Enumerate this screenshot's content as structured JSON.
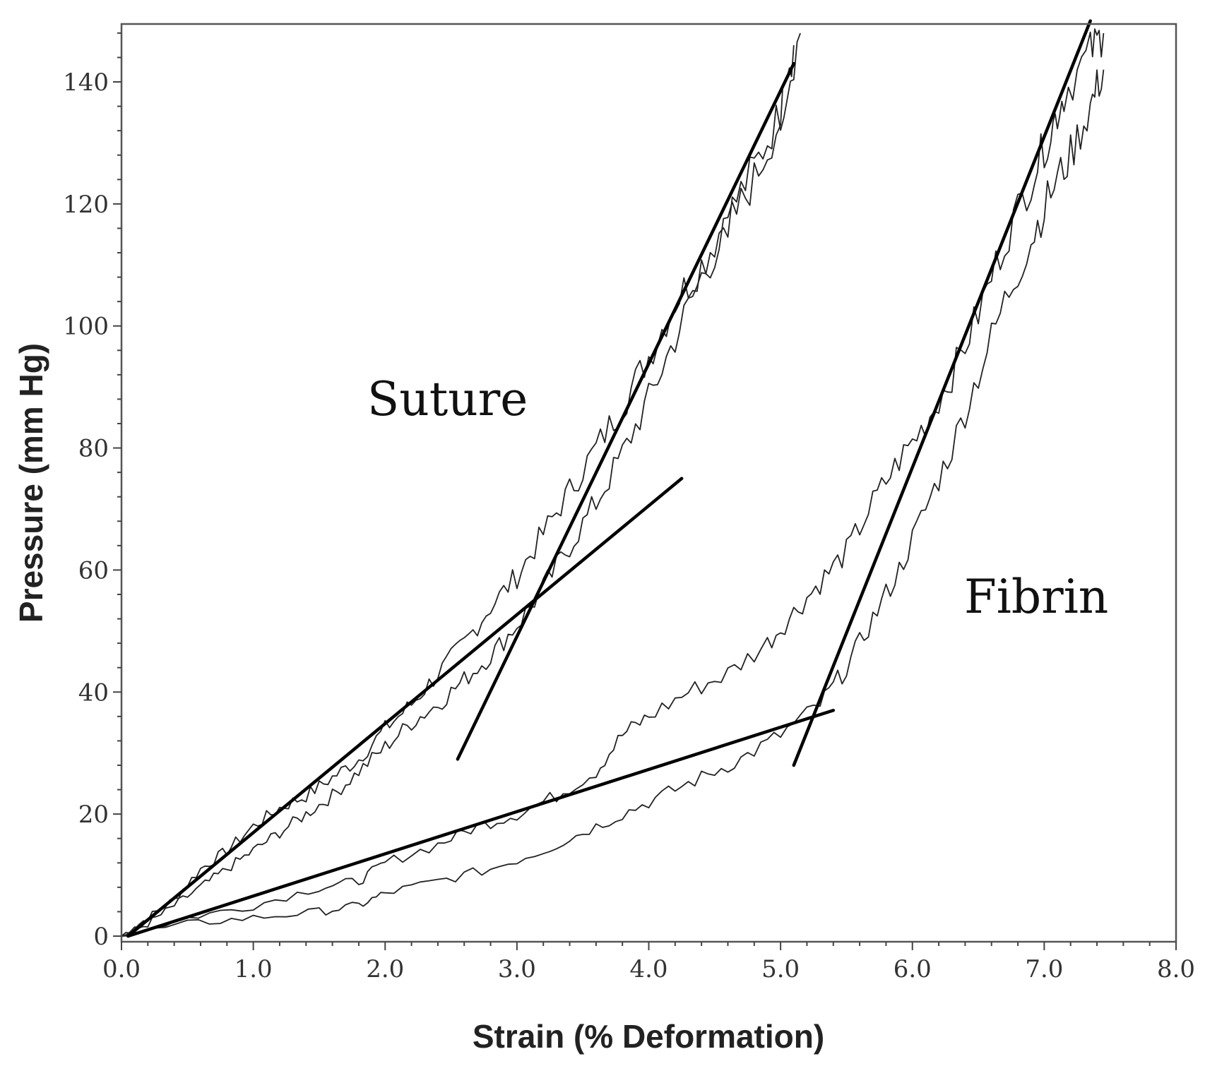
{
  "chart_data": {
    "type": "line",
    "title": "",
    "xlabel": "Strain (% Deformation)",
    "ylabel": "Pressure (mm Hg)",
    "xlim": [
      0,
      8
    ],
    "ylim": [
      0,
      150
    ],
    "x_ticks": [
      0,
      1,
      2,
      3,
      4,
      5,
      6,
      7,
      8
    ],
    "x_tick_labels": [
      "0.0",
      "1.0",
      "2.0",
      "3.0",
      "4.0",
      "5.0",
      "6.0",
      "7.0",
      "8.0"
    ],
    "y_ticks": [
      0,
      20,
      40,
      60,
      80,
      100,
      120,
      140
    ],
    "y_tick_labels": [
      "0",
      "20",
      "40",
      "60",
      "80",
      "100",
      "120",
      "140"
    ],
    "grid": false,
    "legend": "none",
    "annotations": [
      {
        "text": "Suture",
        "x": 2.5,
        "y": 87
      },
      {
        "text": "Fibrin",
        "x": 6.0,
        "y": 54
      }
    ],
    "series": [
      {
        "group": "Suture",
        "kind": "raw",
        "points": [
          [
            0,
            0
          ],
          [
            0.2,
            3
          ],
          [
            0.4,
            6
          ],
          [
            0.6,
            11
          ],
          [
            0.8,
            14
          ],
          [
            1.0,
            18
          ],
          [
            1.2,
            21
          ],
          [
            1.4,
            23
          ],
          [
            1.6,
            26
          ],
          [
            1.8,
            29
          ],
          [
            2.0,
            34
          ],
          [
            2.2,
            38
          ],
          [
            2.4,
            43
          ],
          [
            2.6,
            48
          ],
          [
            2.8,
            54
          ],
          [
            3.0,
            59
          ],
          [
            3.2,
            66
          ],
          [
            3.4,
            73
          ],
          [
            3.6,
            80
          ],
          [
            3.8,
            87
          ],
          [
            4.0,
            95
          ],
          [
            4.2,
            104
          ],
          [
            4.4,
            110
          ],
          [
            4.6,
            118
          ],
          [
            4.8,
            126
          ],
          [
            5.0,
            135
          ],
          [
            5.15,
            148
          ]
        ]
      },
      {
        "group": "Suture",
        "kind": "raw",
        "points": [
          [
            0,
            0
          ],
          [
            0.2,
            2
          ],
          [
            0.4,
            5
          ],
          [
            0.6,
            8
          ],
          [
            0.8,
            11
          ],
          [
            1.0,
            14
          ],
          [
            1.2,
            17
          ],
          [
            1.4,
            20
          ],
          [
            1.6,
            23
          ],
          [
            1.8,
            27
          ],
          [
            2.0,
            31
          ],
          [
            2.2,
            35
          ],
          [
            2.4,
            38
          ],
          [
            2.6,
            42
          ],
          [
            2.8,
            46
          ],
          [
            3.0,
            51
          ],
          [
            3.2,
            57
          ],
          [
            3.4,
            64
          ],
          [
            3.6,
            71
          ],
          [
            3.8,
            79
          ],
          [
            4.0,
            88
          ],
          [
            4.2,
            98
          ],
          [
            4.4,
            108
          ],
          [
            4.6,
            116
          ],
          [
            4.8,
            124
          ],
          [
            5.0,
            134
          ],
          [
            5.1,
            146
          ]
        ]
      },
      {
        "group": "Suture",
        "kind": "fit",
        "points": [
          [
            0.05,
            0
          ],
          [
            4.25,
            75
          ]
        ]
      },
      {
        "group": "Suture",
        "kind": "fit",
        "points": [
          [
            2.55,
            29
          ],
          [
            5.1,
            143
          ]
        ]
      },
      {
        "group": "Fibrin",
        "kind": "raw",
        "points": [
          [
            0,
            0
          ],
          [
            0.5,
            3
          ],
          [
            1.0,
            5
          ],
          [
            1.5,
            8
          ],
          [
            1.8,
            9
          ],
          [
            2.0,
            12
          ],
          [
            2.4,
            15
          ],
          [
            2.7,
            18
          ],
          [
            3.0,
            20
          ],
          [
            3.3,
            23
          ],
          [
            3.6,
            27
          ],
          [
            3.8,
            33
          ],
          [
            4.0,
            36
          ],
          [
            4.3,
            40
          ],
          [
            4.6,
            43
          ],
          [
            4.9,
            48
          ],
          [
            5.1,
            53
          ],
          [
            5.3,
            58
          ],
          [
            5.5,
            63
          ],
          [
            5.7,
            71
          ],
          [
            5.9,
            78
          ],
          [
            6.1,
            84
          ],
          [
            6.3,
            92
          ],
          [
            6.5,
            102
          ],
          [
            6.7,
            114
          ],
          [
            6.9,
            124
          ],
          [
            7.05,
            132
          ],
          [
            7.15,
            138
          ],
          [
            7.35,
            145
          ],
          [
            7.45,
            148
          ]
        ]
      },
      {
        "group": "Fibrin",
        "kind": "raw",
        "points": [
          [
            0,
            0
          ],
          [
            0.5,
            2
          ],
          [
            1.0,
            3
          ],
          [
            1.5,
            4
          ],
          [
            1.8,
            5
          ],
          [
            2.0,
            7
          ],
          [
            2.4,
            9
          ],
          [
            2.8,
            11
          ],
          [
            3.2,
            14
          ],
          [
            3.5,
            17
          ],
          [
            3.8,
            20
          ],
          [
            4.1,
            23
          ],
          [
            4.4,
            26
          ],
          [
            4.7,
            29
          ],
          [
            5.0,
            33
          ],
          [
            5.3,
            38
          ],
          [
            5.5,
            44
          ],
          [
            5.7,
            52
          ],
          [
            5.9,
            60
          ],
          [
            6.1,
            70
          ],
          [
            6.3,
            80
          ],
          [
            6.5,
            92
          ],
          [
            6.7,
            104
          ],
          [
            6.9,
            114
          ],
          [
            7.05,
            122
          ],
          [
            7.2,
            128
          ],
          [
            7.35,
            136
          ],
          [
            7.45,
            142
          ]
        ]
      },
      {
        "group": "Fibrin",
        "kind": "fit",
        "points": [
          [
            0.05,
            0
          ],
          [
            5.4,
            37
          ]
        ]
      },
      {
        "group": "Fibrin",
        "kind": "fit",
        "points": [
          [
            5.1,
            28
          ],
          [
            7.35,
            150
          ]
        ]
      }
    ]
  }
}
